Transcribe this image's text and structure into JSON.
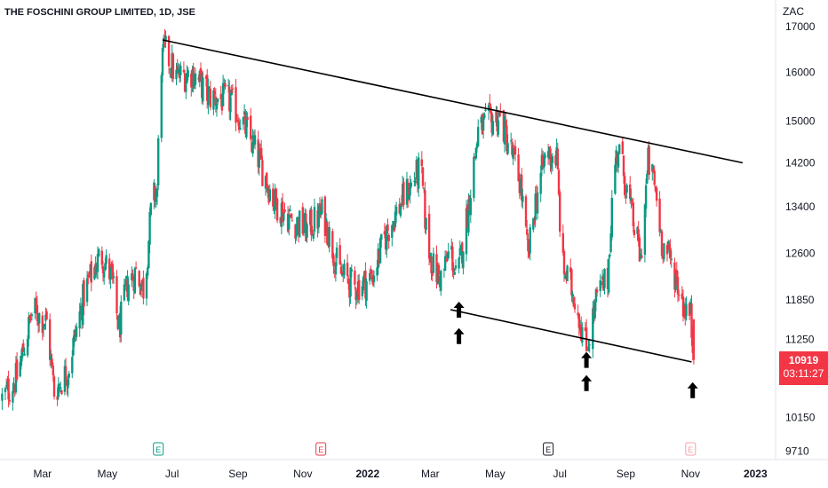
{
  "header": {
    "title": "THE FOSCHINI GROUP LIMITED, 1D, JSE"
  },
  "currency": "ZAC",
  "last_price": {
    "value": "10919",
    "countdown": "03:11:27"
  },
  "events": [
    {
      "label": "E",
      "color": "#089981",
      "date": "2021-06-18"
    },
    {
      "label": "E",
      "color": "#f23645",
      "date": "2021-11-18"
    },
    {
      "label": "E",
      "color": "#131722",
      "date": "2022-06-20"
    },
    {
      "label": "E",
      "color": "#f7a0a8",
      "date": "2022-11-01"
    }
  ],
  "colors": {
    "up": "#089981",
    "down": "#f23645",
    "trendline": "#000000",
    "arrow": "#000000"
  },
  "chart_data": {
    "type": "candlestick",
    "y_scale": "log",
    "ylim": [
      9600,
      17500
    ],
    "y_ticks": [
      17000,
      16000,
      15000,
      14200,
      13400,
      12600,
      11850,
      11250,
      10150,
      9710
    ],
    "x_range": [
      "2021-01-20",
      "2023-01-20"
    ],
    "x_ticks": [
      {
        "date": "2021-03-01",
        "label": "Mar",
        "bold": false
      },
      {
        "date": "2021-05-01",
        "label": "May",
        "bold": false
      },
      {
        "date": "2021-07-01",
        "label": "Jul",
        "bold": false
      },
      {
        "date": "2021-09-01",
        "label": "Sep",
        "bold": false
      },
      {
        "date": "2021-11-01",
        "label": "Nov",
        "bold": false
      },
      {
        "date": "2022-01-01",
        "label": "2022",
        "bold": true
      },
      {
        "date": "2022-03-01",
        "label": "Mar",
        "bold": false
      },
      {
        "date": "2022-05-01",
        "label": "May",
        "bold": false
      },
      {
        "date": "2022-07-01",
        "label": "Jul",
        "bold": false
      },
      {
        "date": "2022-09-01",
        "label": "Sep",
        "bold": false
      },
      {
        "date": "2022-11-01",
        "label": "Nov",
        "bold": false
      },
      {
        "date": "2023-01-01",
        "label": "2023",
        "bold": true
      }
    ],
    "anchors": [
      [
        "2021-01-22",
        10400
      ],
      [
        "2021-02-05",
        10700
      ],
      [
        "2021-02-20",
        11700
      ],
      [
        "2021-03-05",
        11500
      ],
      [
        "2021-03-12",
        10500
      ],
      [
        "2021-03-25",
        10800
      ],
      [
        "2021-04-10",
        12000
      ],
      [
        "2021-04-25",
        12600
      ],
      [
        "2021-05-05",
        12200
      ],
      [
        "2021-05-12",
        11400
      ],
      [
        "2021-05-20",
        12100
      ],
      [
        "2021-05-28",
        12300
      ],
      [
        "2021-06-05",
        12000
      ],
      [
        "2021-06-12",
        13500
      ],
      [
        "2021-06-17",
        13700
      ],
      [
        "2021-06-20",
        16100
      ],
      [
        "2021-06-24",
        16500
      ],
      [
        "2021-07-05",
        15900
      ],
      [
        "2021-07-20",
        16000
      ],
      [
        "2021-08-05",
        15500
      ],
      [
        "2021-08-25",
        15400
      ],
      [
        "2021-09-05",
        15000
      ],
      [
        "2021-09-20",
        14300
      ],
      [
        "2021-10-05",
        13500
      ],
      [
        "2021-10-20",
        13200
      ],
      [
        "2021-11-05",
        13000
      ],
      [
        "2021-11-20",
        13300
      ],
      [
        "2021-12-05",
        12300
      ],
      [
        "2021-12-20",
        12050
      ],
      [
        "2022-01-05",
        12200
      ],
      [
        "2022-01-20",
        13000
      ],
      [
        "2022-02-05",
        13600
      ],
      [
        "2022-02-20",
        14100
      ],
      [
        "2022-02-26",
        12800
      ],
      [
        "2022-03-05",
        12300
      ],
      [
        "2022-03-12",
        12200
      ],
      [
        "2022-03-20",
        12700
      ],
      [
        "2022-03-26",
        12100
      ],
      [
        "2022-04-05",
        13300
      ],
      [
        "2022-04-15",
        14800
      ],
      [
        "2022-04-25",
        15000
      ],
      [
        "2022-05-05",
        15100
      ],
      [
        "2022-05-15",
        14500
      ],
      [
        "2022-05-25",
        13800
      ],
      [
        "2022-06-01",
        12500
      ],
      [
        "2022-06-08",
        13500
      ],
      [
        "2022-06-18",
        14400
      ],
      [
        "2022-06-28",
        14300
      ],
      [
        "2022-07-03",
        12400
      ],
      [
        "2022-07-15",
        11900
      ],
      [
        "2022-07-26",
        11100
      ],
      [
        "2022-08-05",
        11900
      ],
      [
        "2022-08-15",
        12200
      ],
      [
        "2022-08-21",
        14100
      ],
      [
        "2022-08-25",
        14500
      ],
      [
        "2022-09-05",
        13400
      ],
      [
        "2022-09-15",
        12500
      ],
      [
        "2022-09-22",
        14200
      ],
      [
        "2022-09-28",
        13800
      ],
      [
        "2022-10-05",
        12800
      ],
      [
        "2022-10-15",
        12400
      ],
      [
        "2022-10-25",
        11800
      ],
      [
        "2022-11-01",
        11600
      ],
      [
        "2022-11-04",
        10950
      ]
    ]
  },
  "trendlines": [
    {
      "from": [
        "2021-06-22",
        16700
      ],
      "to": [
        "2022-12-20",
        14200
      ]
    },
    {
      "from": [
        "2022-03-20",
        11700
      ],
      "to": [
        "2022-11-02",
        10920
      ]
    }
  ],
  "markers": [
    {
      "date": "2022-03-28",
      "price": 11300
    },
    {
      "date": "2022-03-28",
      "price": 11700
    },
    {
      "date": "2022-07-26",
      "price": 10620
    },
    {
      "date": "2022-07-26",
      "price": 10950
    },
    {
      "date": "2022-11-03",
      "price": 10520
    }
  ]
}
